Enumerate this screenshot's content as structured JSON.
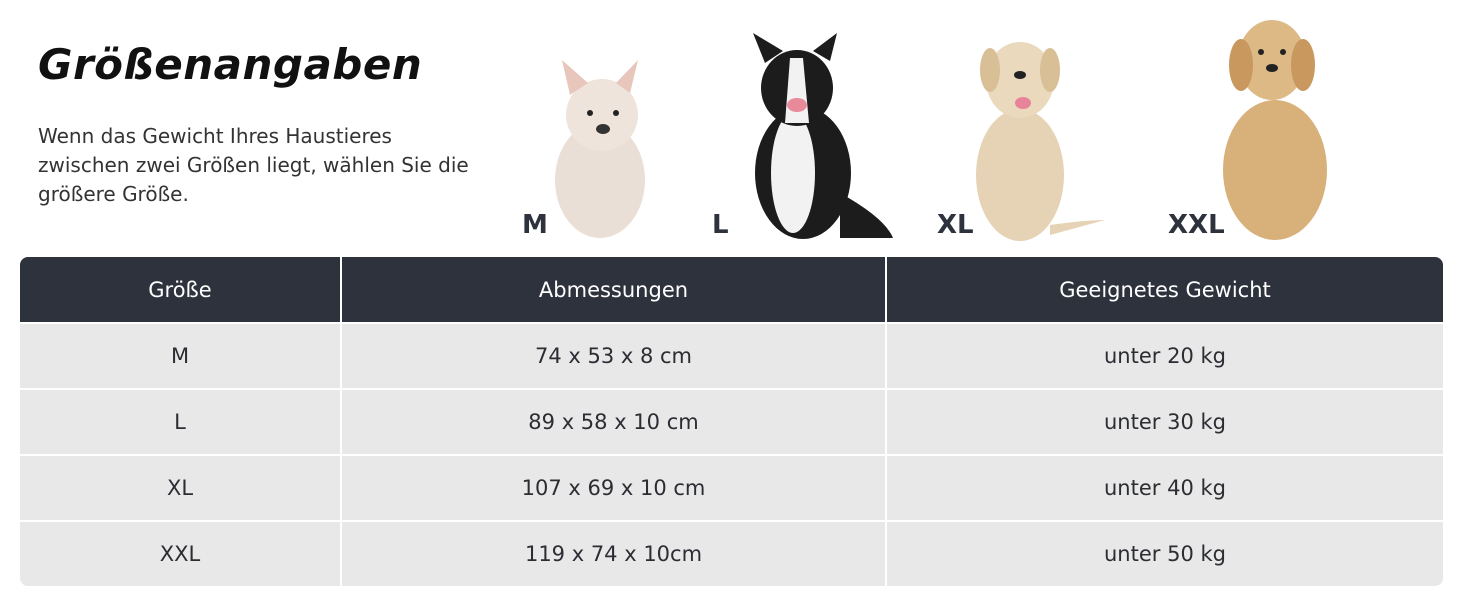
{
  "title": "Größenangaben",
  "description": "Wenn das Gewicht Ihres Haustieres zwischen zwei Größen liegt, wählen Sie die größere Größe.",
  "dogs": [
    {
      "size": "M",
      "breed_icon": "french-bulldog",
      "color": "#eadfd6"
    },
    {
      "size": "L",
      "breed_icon": "border-collie",
      "color": "#1c1c1c"
    },
    {
      "size": "XL",
      "breed_icon": "labrador",
      "color": "#e6d3b5"
    },
    {
      "size": "XXL",
      "breed_icon": "golden-retriever",
      "color": "#d8b07a"
    }
  ],
  "table": {
    "headers": [
      "Größe",
      "Abmessungen",
      "Geeignetes Gewicht"
    ],
    "rows": [
      [
        "M",
        "74 x 53 x 8 cm",
        "unter 20 kg"
      ],
      [
        "L",
        "89 x 58 x 10 cm",
        "unter 30 kg"
      ],
      [
        "XL",
        "107 x 69 x 10 cm",
        "unter 40 kg"
      ],
      [
        "XXL",
        "119 x 74 x 10cm",
        "unter 50 kg"
      ]
    ]
  },
  "colors": {
    "header_bg": "#2e323d",
    "row_bg": "#e8e8e8"
  }
}
